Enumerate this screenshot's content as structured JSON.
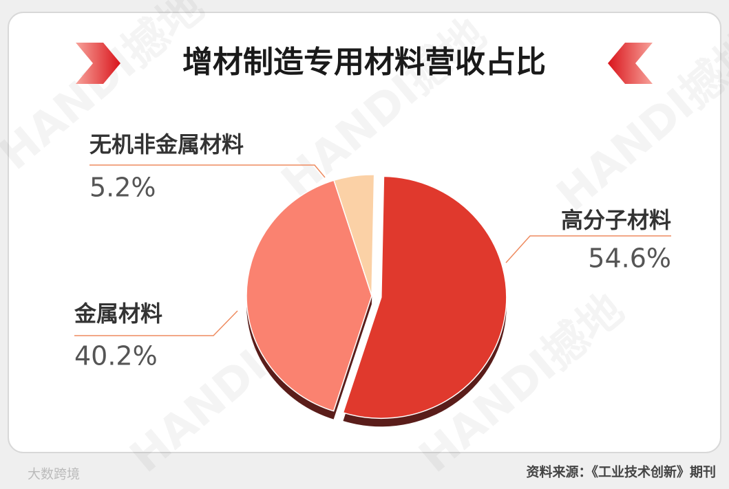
{
  "chart_data": {
    "type": "pie",
    "title": "增材制造专用材料营收占比",
    "categories": [
      "高分子材料",
      "金属材料",
      "无机非金属材料"
    ],
    "values": [
      54.6,
      40.2,
      5.2
    ],
    "value_labels": [
      "54.6%",
      "40.2%",
      "5.2%"
    ],
    "colors": [
      "#e0392d",
      "#fa8270",
      "#fbd1a6"
    ],
    "source": "资料来源：《工业技术创新》期刊",
    "watermark": "HANDI撼地",
    "logo_text": "大数跨境"
  }
}
